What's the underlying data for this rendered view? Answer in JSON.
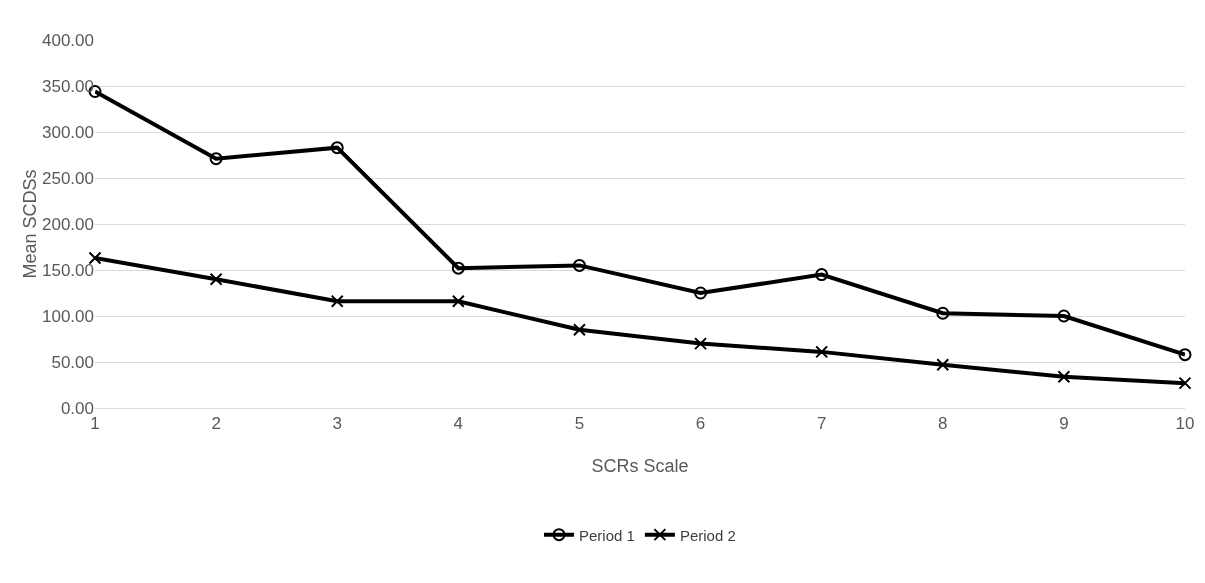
{
  "chart_data": {
    "type": "line",
    "xlabel": "SCRs Scale",
    "ylabel": "Mean SCDSs",
    "x": [
      1,
      2,
      3,
      4,
      5,
      6,
      7,
      8,
      9,
      10
    ],
    "xlim": [
      1,
      10
    ],
    "xticks": [
      1,
      2,
      3,
      4,
      5,
      6,
      7,
      8,
      9,
      10
    ],
    "ylim": [
      0,
      400
    ],
    "yticks": [
      {
        "value": 0,
        "label": "0.00"
      },
      {
        "value": 50,
        "label": "50.00"
      },
      {
        "value": 100,
        "label": "100.00"
      },
      {
        "value": 150,
        "label": "150.00"
      },
      {
        "value": 200,
        "label": "200.00"
      },
      {
        "value": 250,
        "label": "250.00"
      },
      {
        "value": 300,
        "label": "300.00"
      },
      {
        "value": 350,
        "label": "350.00"
      },
      {
        "value": 400,
        "label": "400.00"
      }
    ],
    "series": [
      {
        "name": "Period 1",
        "color": "#000000",
        "marker": "circle",
        "values": [
          344,
          271,
          283,
          152,
          155,
          125,
          145,
          103,
          100,
          58
        ]
      },
      {
        "name": "Period 2",
        "color": "#000000",
        "marker": "cross",
        "values": [
          163,
          140,
          116,
          116,
          85,
          70,
          61,
          47,
          34,
          27
        ]
      }
    ],
    "grid": "y",
    "legend": "bottom",
    "line_style": "solid"
  }
}
